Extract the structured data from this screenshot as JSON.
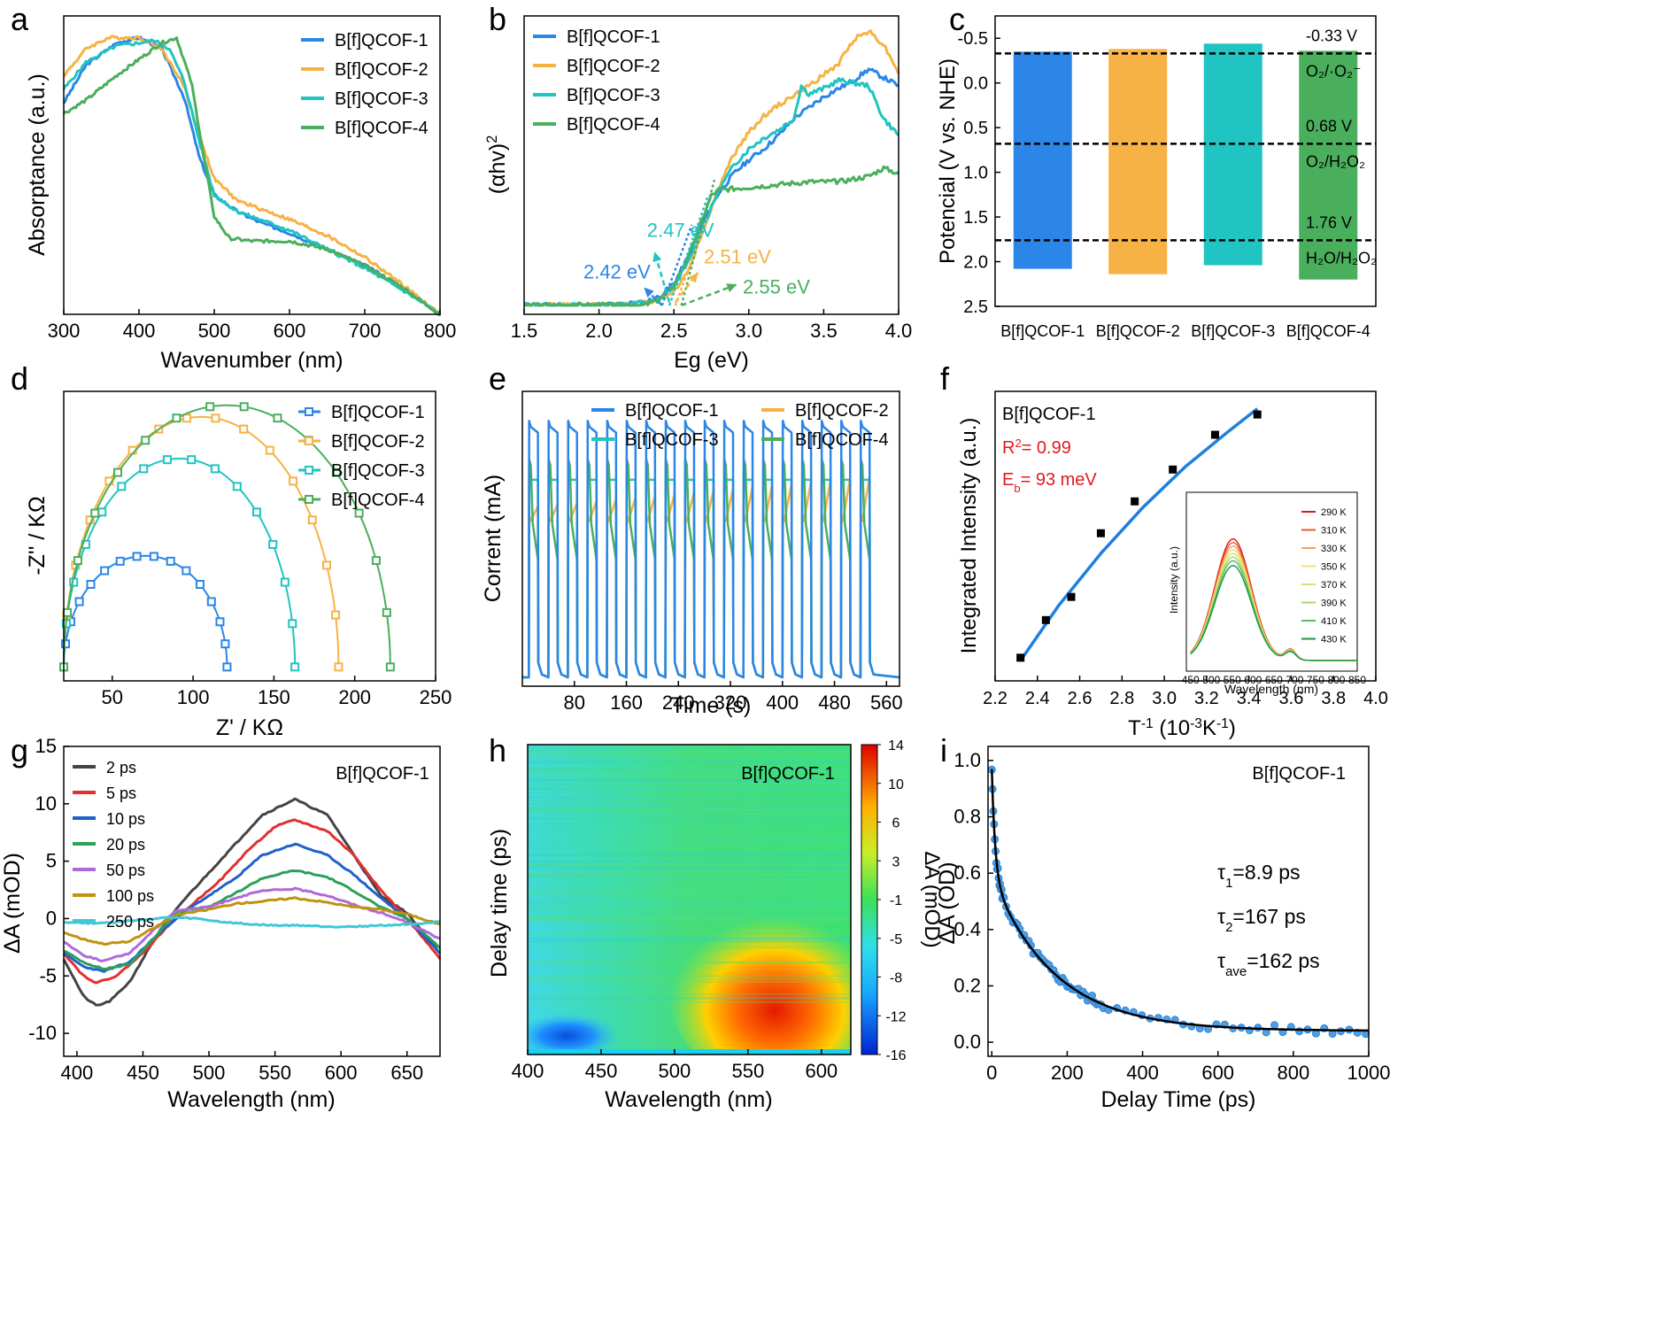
{
  "colors": {
    "series": [
      "#2b86e8",
      "#f6b244",
      "#20c4c2",
      "#4aaf5c"
    ],
    "red": "#e31a1c",
    "black": "#111111",
    "tas": [
      "#444444",
      "#e23030",
      "#1f62c9",
      "#2aa15a",
      "#b06ad6",
      "#c0930f",
      "#40c8d6"
    ]
  },
  "chart_data": [
    {
      "panel": "a",
      "type": "line",
      "xlabel": "Wavenumber (nm)",
      "ylabel": "Absorptance (a.u.)",
      "xlim": [
        300,
        800
      ],
      "ylim": [
        0,
        1.1
      ],
      "xticks": [
        300,
        400,
        500,
        600,
        700,
        800
      ],
      "legend": [
        "B[f]QCOF-1",
        "B[f]QCOF-2",
        "B[f]QCOF-3",
        "B[f]QCOF-4"
      ],
      "series": [
        {
          "name": "B[f]QCOF-1",
          "x": [
            300,
            330,
            370,
            400,
            430,
            460,
            480,
            500,
            530,
            560,
            600,
            650,
            700,
            750,
            800
          ],
          "y": [
            0.78,
            0.92,
            1.0,
            1.02,
            0.98,
            0.8,
            0.58,
            0.44,
            0.38,
            0.34,
            0.3,
            0.24,
            0.18,
            0.1,
            0.0
          ]
        },
        {
          "name": "B[f]QCOF-2",
          "x": [
            300,
            330,
            360,
            400,
            430,
            460,
            480,
            500,
            530,
            560,
            600,
            650,
            700,
            750,
            800
          ],
          "y": [
            0.88,
            0.98,
            1.02,
            1.02,
            0.98,
            0.84,
            0.66,
            0.5,
            0.42,
            0.39,
            0.35,
            0.29,
            0.21,
            0.11,
            0.0
          ]
        },
        {
          "name": "B[f]QCOF-3",
          "x": [
            300,
            330,
            370,
            400,
            420,
            440,
            460,
            480,
            500,
            530,
            560,
            600,
            650,
            700,
            750,
            800
          ],
          "y": [
            0.83,
            0.93,
            0.99,
            1.0,
            1.01,
            0.98,
            0.86,
            0.64,
            0.44,
            0.38,
            0.35,
            0.31,
            0.24,
            0.17,
            0.09,
            0.0
          ]
        },
        {
          "name": "B[f]QCOF-4",
          "x": [
            300,
            330,
            370,
            400,
            430,
            450,
            470,
            485,
            500,
            520,
            550,
            600,
            650,
            700,
            750,
            800
          ],
          "y": [
            0.74,
            0.79,
            0.88,
            0.94,
            1.0,
            1.02,
            0.85,
            0.6,
            0.36,
            0.28,
            0.27,
            0.27,
            0.24,
            0.18,
            0.1,
            0.0
          ]
        }
      ]
    },
    {
      "panel": "b",
      "type": "line",
      "xlabel": "Eg (eV)",
      "ylabel": "(αhv)",
      "ylabel_sup": "2",
      "xlim": [
        1.5,
        4.0
      ],
      "ylim": [
        0,
        1.0
      ],
      "xticks": [
        1.5,
        2.0,
        2.5,
        3.0,
        3.5,
        4.0
      ],
      "legend": [
        "B[f]QCOF-1",
        "B[f]QCOF-2",
        "B[f]QCOF-3",
        "B[f]QCOF-4"
      ],
      "annotations": [
        {
          "text": "2.42 eV",
          "series": 0
        },
        {
          "text": "2.47 eV",
          "series": 2
        },
        {
          "text": "2.51 eV",
          "series": 1
        },
        {
          "text": "2.55 eV",
          "series": 3
        }
      ],
      "series": [
        {
          "name": "B[f]QCOF-1",
          "x": [
            1.5,
            2.0,
            2.3,
            2.4,
            2.5,
            2.6,
            2.7,
            2.8,
            2.9,
            3.0,
            3.1,
            3.2,
            3.3,
            3.5,
            3.7,
            3.8,
            3.9,
            4.0
          ],
          "y": [
            0.0,
            0.0,
            0.01,
            0.03,
            0.08,
            0.18,
            0.31,
            0.41,
            0.48,
            0.53,
            0.57,
            0.62,
            0.68,
            0.76,
            0.82,
            0.86,
            0.83,
            0.8
          ]
        },
        {
          "name": "B[f]QCOF-2",
          "x": [
            1.5,
            2.0,
            2.3,
            2.4,
            2.5,
            2.6,
            2.7,
            2.8,
            2.9,
            3.0,
            3.1,
            3.2,
            3.4,
            3.6,
            3.7,
            3.8,
            3.9,
            4.0
          ],
          "y": [
            0.0,
            0.0,
            0.01,
            0.02,
            0.05,
            0.13,
            0.28,
            0.43,
            0.55,
            0.63,
            0.69,
            0.73,
            0.8,
            0.88,
            0.97,
            1.0,
            0.95,
            0.85
          ]
        },
        {
          "name": "B[f]QCOF-3",
          "x": [
            1.5,
            2.0,
            2.3,
            2.4,
            2.5,
            2.6,
            2.7,
            2.8,
            2.9,
            3.0,
            3.1,
            3.2,
            3.3,
            3.35,
            3.4,
            3.5,
            3.6,
            3.8,
            3.9,
            4.0
          ],
          "y": [
            0.0,
            0.0,
            0.01,
            0.02,
            0.07,
            0.16,
            0.29,
            0.42,
            0.51,
            0.57,
            0.61,
            0.64,
            0.68,
            0.8,
            0.77,
            0.79,
            0.82,
            0.8,
            0.68,
            0.62
          ]
        },
        {
          "name": "B[f]QCOF-4",
          "x": [
            1.5,
            2.0,
            2.3,
            2.4,
            2.5,
            2.6,
            2.7,
            2.75,
            2.8,
            3.0,
            3.2,
            3.4,
            3.6,
            3.8,
            3.9,
            4.0
          ],
          "y": [
            0.0,
            0.0,
            0.0,
            0.02,
            0.07,
            0.18,
            0.33,
            0.4,
            0.42,
            0.43,
            0.44,
            0.45,
            0.45,
            0.47,
            0.5,
            0.48
          ]
        }
      ]
    },
    {
      "panel": "c",
      "type": "bar",
      "ylabel": "Potencial (V vs. NHE)",
      "categories": [
        "B[f]QCOF-1",
        "B[f]QCOF-2",
        "B[f]QCOF-3",
        "B[f]QCOF-4"
      ],
      "ranges": [
        [
          -0.35,
          2.08
        ],
        [
          -0.38,
          2.14
        ],
        [
          -0.44,
          2.04
        ],
        [
          -0.36,
          2.2
        ]
      ],
      "ylim": [
        -0.75,
        2.5
      ],
      "yticks": [
        -0.5,
        0.0,
        0.5,
        1.0,
        1.5,
        2.0,
        2.5
      ],
      "reference_lines": [
        {
          "value": -0.33,
          "label": "-0.33 V",
          "couple": "O₂/·O₂⁻"
        },
        {
          "value": 0.68,
          "label": "0.68 V",
          "couple": "O₂/H₂O₂"
        },
        {
          "value": 1.76,
          "label": "1.76 V",
          "couple": "H₂O/H₂O₂"
        }
      ]
    },
    {
      "panel": "d",
      "type": "scatter",
      "xlabel": "Z' / KΩ",
      "ylabel": "-Z'' / KΩ",
      "xlim": [
        20,
        250
      ],
      "ylim": [
        0,
        125
      ],
      "xticks": [
        50,
        100,
        150,
        200,
        250
      ],
      "legend": [
        "B[f]QCOF-1",
        "B[f]QCOF-2",
        "B[f]QCOF-3",
        "B[f]QCOF-4"
      ],
      "arcs": [
        {
          "name": "B[f]QCOF-1",
          "x_start": 20,
          "x_end": 121,
          "height": 48
        },
        {
          "name": "B[f]QCOF-2",
          "x_start": 20,
          "x_end": 190,
          "height": 108
        },
        {
          "name": "B[f]QCOF-3",
          "x_start": 20,
          "x_end": 163,
          "height": 90
        },
        {
          "name": "B[f]QCOF-4",
          "x_start": 20,
          "x_end": 222,
          "height": 113
        }
      ]
    },
    {
      "panel": "e",
      "type": "line",
      "xlabel": "Time (s)",
      "ylabel": "Corrent (mA)",
      "xlim": [
        0,
        580
      ],
      "ylim": [
        0,
        1.0
      ],
      "xticks": [
        80,
        160,
        240,
        320,
        400,
        480,
        560
      ],
      "legend": [
        "B[f]QCOF-1",
        "B[f]QCOF-2",
        "B[f]QCOF-3",
        "B[f]QCOF-4"
      ],
      "on_off_cycles": 18,
      "period_s": 30,
      "light_on_levels": [
        0.88,
        0.56,
        0.7,
        0.75
      ],
      "light_on_end_levels": [
        0.86,
        0.61,
        0.7,
        0.43
      ]
    },
    {
      "panel": "f",
      "type": "scatter",
      "xlabel": "T",
      "xlabel_sup": "-1",
      "xlabel_tail": " (10",
      "xlabel_sup2": "-3",
      "xlabel_tail2": "K",
      "xlabel_sup3": "-1",
      "xlabel_end": ")",
      "ylabel": "Integrated Intensity (a.u.)",
      "xlim": [
        2.2,
        4.0
      ],
      "ylim": [
        0,
        1.0
      ],
      "xticks": [
        2.2,
        2.4,
        2.6,
        2.8,
        3.0,
        3.2,
        3.4,
        3.6,
        3.8,
        4.0
      ],
      "sample": "B[f]QCOF-1",
      "r2_label": "R",
      "r2_sup": "2",
      "r2_value": "= 0.99",
      "eb_label": "E",
      "eb_sub": "b",
      "eb_value": "= 93 meV",
      "points": [
        [
          2.32,
          0.08
        ],
        [
          2.44,
          0.21
        ],
        [
          2.56,
          0.29
        ],
        [
          2.7,
          0.51
        ],
        [
          2.86,
          0.62
        ],
        [
          3.04,
          0.73
        ],
        [
          3.24,
          0.85
        ],
        [
          3.44,
          0.92
        ]
      ],
      "fit": [
        [
          2.32,
          0.07
        ],
        [
          2.5,
          0.26
        ],
        [
          2.7,
          0.44
        ],
        [
          2.9,
          0.6
        ],
        [
          3.1,
          0.74
        ],
        [
          3.3,
          0.86
        ],
        [
          3.44,
          0.94
        ]
      ],
      "inset": {
        "xlabel": "Wavelength (nm)",
        "ylabel": "Intensity (a.u.)",
        "xticks": [
          450,
          500,
          550,
          600,
          650,
          700,
          750,
          800,
          850
        ],
        "temperatures": [
          "290 K",
          "310 K",
          "330 K",
          "350 K",
          "370 K",
          "390 K",
          "410 K",
          "430 K"
        ],
        "temp_colors": [
          "#d7191c",
          "#f05a28",
          "#f7a05c",
          "#f4e06a",
          "#d8e070",
          "#a6d96a",
          "#5fb861",
          "#1a9641"
        ],
        "peak_heights": [
          1.0,
          0.97,
          0.94,
          0.91,
          0.88,
          0.85,
          0.82,
          0.78
        ]
      }
    },
    {
      "panel": "g",
      "type": "line",
      "xlabel": "Wavelength (nm)",
      "ylabel": "ΔA (mOD)",
      "xlim": [
        390,
        675
      ],
      "ylim": [
        -12,
        15
      ],
      "xticks": [
        400,
        450,
        500,
        550,
        600,
        650
      ],
      "yticks": [
        -10,
        -5,
        0,
        5,
        10,
        15
      ],
      "yticklabels": [
        "-10",
        "-5",
        "0",
        "5",
        "10",
        "15"
      ],
      "sample": "B[f]QCOF-1",
      "series": [
        {
          "name": "2 ps",
          "x": [
            390,
            405,
            415,
            425,
            440,
            460,
            480,
            500,
            520,
            540,
            565,
            590,
            610,
            630,
            650,
            675
          ],
          "y": [
            -3.5,
            -6.8,
            -7.6,
            -7.2,
            -5.5,
            -1.5,
            1.5,
            4.0,
            6.5,
            9.0,
            10.4,
            9.0,
            5.5,
            2.0,
            0.5,
            -3.0
          ]
        },
        {
          "name": "5 ps",
          "x": [
            390,
            405,
            415,
            430,
            450,
            470,
            490,
            510,
            530,
            550,
            565,
            590,
            610,
            630,
            650,
            675
          ],
          "y": [
            -3.0,
            -5.0,
            -5.6,
            -5.0,
            -3.0,
            -0.5,
            1.5,
            3.5,
            6.0,
            8.0,
            8.6,
            7.6,
            5.5,
            2.5,
            0.0,
            -3.5
          ]
        },
        {
          "name": "10 ps",
          "x": [
            390,
            405,
            420,
            440,
            460,
            480,
            500,
            520,
            540,
            565,
            590,
            610,
            630,
            650,
            675
          ],
          "y": [
            -3.0,
            -4.2,
            -4.6,
            -3.8,
            -1.5,
            0.5,
            2.0,
            3.5,
            5.5,
            6.5,
            5.5,
            3.8,
            1.8,
            0.0,
            -3.0
          ]
        },
        {
          "name": "20 ps",
          "x": [
            390,
            405,
            420,
            440,
            460,
            475,
            500,
            520,
            540,
            565,
            590,
            610,
            630,
            650,
            675
          ],
          "y": [
            -2.8,
            -3.8,
            -4.4,
            -4.0,
            -1.5,
            0.6,
            1.0,
            2.2,
            3.5,
            4.2,
            3.6,
            2.4,
            1.0,
            0.0,
            -2.5
          ]
        },
        {
          "name": "50 ps",
          "x": [
            390,
            405,
            420,
            440,
            460,
            475,
            500,
            520,
            540,
            565,
            590,
            610,
            630,
            650,
            675
          ],
          "y": [
            -2.0,
            -3.2,
            -3.7,
            -3.0,
            -0.8,
            0.7,
            1.0,
            1.8,
            2.4,
            2.6,
            2.0,
            1.2,
            0.5,
            -0.3,
            -1.8
          ]
        },
        {
          "name": "100 ps",
          "x": [
            390,
            405,
            420,
            440,
            460,
            475,
            500,
            520,
            540,
            565,
            590,
            610,
            630,
            650,
            675
          ],
          "y": [
            -1.2,
            -1.8,
            -2.2,
            -2.0,
            -0.7,
            0.3,
            0.8,
            1.3,
            1.5,
            1.8,
            1.4,
            1.0,
            0.8,
            0.4,
            -0.5
          ]
        },
        {
          "name": "250 ps",
          "x": [
            390,
            410,
            430,
            450,
            470,
            490,
            510,
            530,
            550,
            570,
            590,
            610,
            630,
            650,
            675
          ],
          "y": [
            -0.3,
            -0.4,
            -0.3,
            -0.1,
            0.1,
            0.0,
            -0.3,
            -0.5,
            -0.6,
            -0.6,
            -0.7,
            -0.7,
            -0.6,
            -0.5,
            -0.3
          ]
        }
      ]
    },
    {
      "panel": "h",
      "type": "heatmap",
      "xlabel": "Wavelength (nm)",
      "ylabel": "Delay time (ps)",
      "colorbar_label": "ΔA (mOD)",
      "xlim": [
        400,
        620
      ],
      "xticks": [
        400,
        450,
        500,
        550,
        600
      ],
      "colorbar_ticks": [
        14,
        10,
        6,
        3,
        -1,
        -5,
        -8,
        -12,
        -16
      ],
      "sample": "B[f]QCOF-1"
    },
    {
      "panel": "i",
      "type": "scatter",
      "xlabel": "Delay Time (ps)",
      "ylabel": "ΔA (OD)",
      "xlim": [
        -10,
        1000
      ],
      "ylim": [
        -0.05,
        1.05
      ],
      "xticks": [
        0,
        200,
        400,
        600,
        800,
        1000
      ],
      "yticks": [
        0.0,
        0.2,
        0.4,
        0.6,
        0.8,
        1.0
      ],
      "sample": "B[f]QCOF-1",
      "tau1_sub": "1",
      "tau1_value": "=8.9 ps",
      "tau2_sub": "2",
      "tau2_value": "=167 ps",
      "tauave_sub": "ave",
      "tauave_value": "=162 ps",
      "fit": {
        "a1": 0.38,
        "t1": 8.9,
        "a2": 0.55,
        "t2": 167,
        "offset": 0.04
      }
    }
  ],
  "panel_labels": [
    "a",
    "b",
    "c",
    "d",
    "e",
    "f",
    "g",
    "h",
    "i"
  ]
}
